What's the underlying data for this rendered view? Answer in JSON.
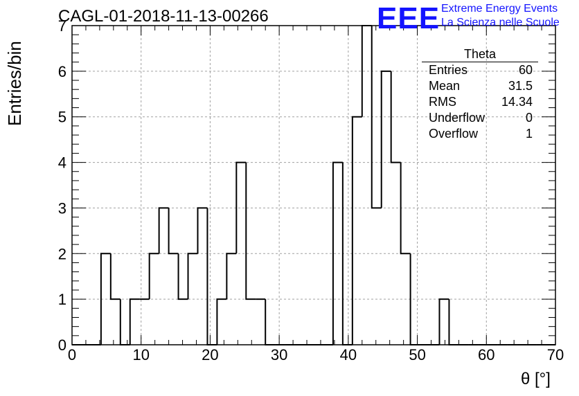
{
  "title": "CAGL-01-2018-11-13-00266",
  "logo": {
    "mark": "EEE",
    "line1": "Extreme Energy Events",
    "line2": "La Scienza nelle Scuole",
    "color": "#1414ff"
  },
  "stats_box": {
    "name": "Theta",
    "rows": [
      {
        "label": "Entries",
        "value": "60"
      },
      {
        "label": "Mean",
        "value": "31.5"
      },
      {
        "label": "RMS",
        "value": "14.34"
      },
      {
        "label": "Underflow",
        "value": "0"
      },
      {
        "label": "Overflow",
        "value": "1"
      }
    ]
  },
  "chart_data": {
    "type": "histogram",
    "xlabel": "θ [°]",
    "ylabel": "Entries/bin",
    "xlim": [
      0,
      70
    ],
    "ylim": [
      0,
      7
    ],
    "bin_width": 1.4,
    "bin_edges_start": 0,
    "values": [
      0,
      0,
      0,
      2,
      1,
      0,
      1,
      1,
      2,
      3,
      2,
      1,
      2,
      3,
      0,
      1,
      2,
      4,
      1,
      1,
      0,
      0,
      0,
      0,
      0,
      0,
      0,
      4,
      0,
      5,
      7,
      3,
      6,
      4,
      2,
      0,
      0,
      0,
      1,
      0,
      0,
      0,
      0,
      0,
      0,
      0,
      0,
      0,
      0,
      0
    ],
    "xticks": [
      0,
      10,
      20,
      30,
      40,
      50,
      60,
      70
    ],
    "yticks": [
      0,
      1,
      2,
      3,
      4,
      5,
      6,
      7
    ],
    "grid": true,
    "line_color": "#000000"
  }
}
